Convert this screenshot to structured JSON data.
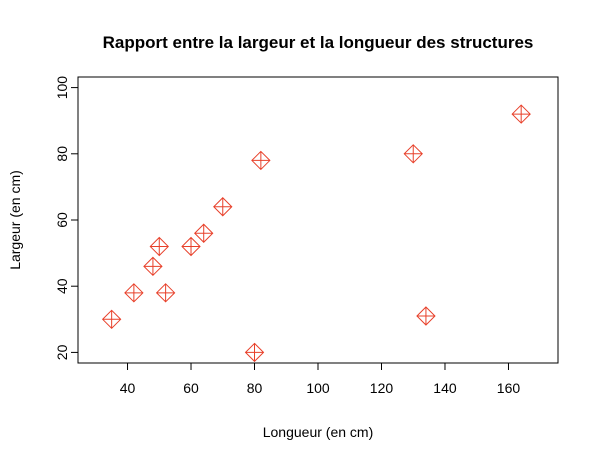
{
  "chart_data": {
    "type": "scatter",
    "title": "Rapport entre la largeur et la longueur des structures",
    "x_label": "Longueur (en cm)",
    "y_label": "Largeur (en cm)",
    "x": [
      35,
      42,
      48,
      50,
      52,
      60,
      64,
      70,
      80,
      82,
      130,
      134,
      164
    ],
    "values": [
      30,
      38,
      46,
      52,
      38,
      52,
      56,
      64,
      20,
      78,
      80,
      31,
      92
    ],
    "color": "#e8402a",
    "xlim": [
      24.4,
      175.6
    ],
    "ylim": [
      16.8,
      103.2
    ],
    "xticks": [
      40,
      60,
      80,
      100,
      120,
      140,
      160
    ],
    "yticks": [
      20,
      40,
      60,
      80,
      100
    ]
  }
}
